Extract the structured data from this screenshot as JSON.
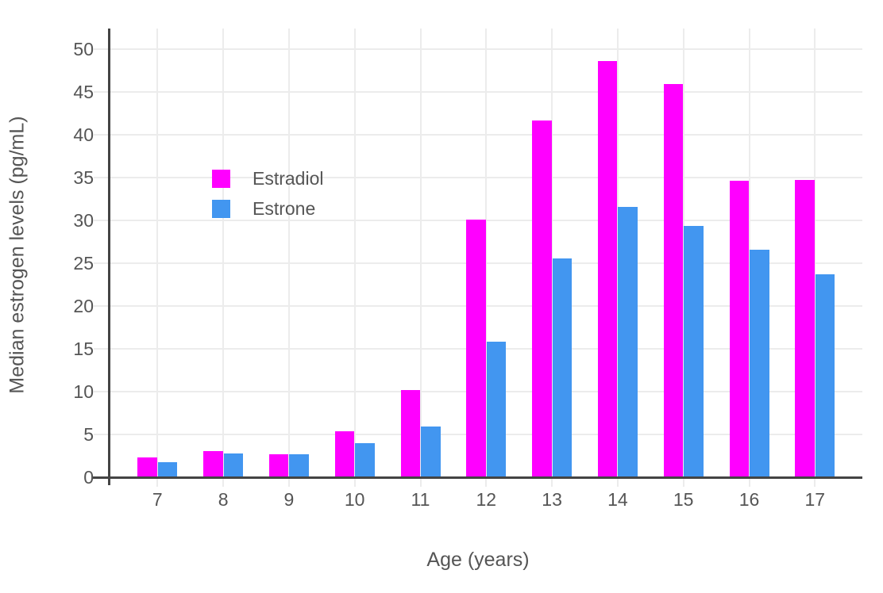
{
  "chart_data": {
    "type": "bar",
    "title": "",
    "xlabel": "Age (years)",
    "ylabel": "Median estrogen levels (pg/mL)",
    "categories": [
      "7",
      "8",
      "9",
      "10",
      "11",
      "12",
      "13",
      "14",
      "15",
      "16",
      "17"
    ],
    "series": [
      {
        "name": "Estradiol",
        "color": "#ff00ff",
        "values": [
          2.2,
          3.0,
          2.6,
          5.3,
          10.1,
          30.0,
          41.6,
          48.5,
          45.8,
          34.5,
          34.6
        ]
      },
      {
        "name": "Estrone",
        "color": "#4296f0",
        "values": [
          1.7,
          2.7,
          2.6,
          3.9,
          5.8,
          15.7,
          25.5,
          31.5,
          29.3,
          26.5,
          23.6
        ]
      }
    ],
    "yticks": [
      0,
      5,
      10,
      15,
      20,
      25,
      30,
      35,
      40,
      45,
      50
    ],
    "ylim": [
      0,
      52.4
    ],
    "grid": true,
    "legend_position": "inside-top-left"
  },
  "palette": {
    "grid_color": "#ececec",
    "axis_color": "#444444",
    "text_color": "#555555",
    "background": "#ffffff"
  }
}
